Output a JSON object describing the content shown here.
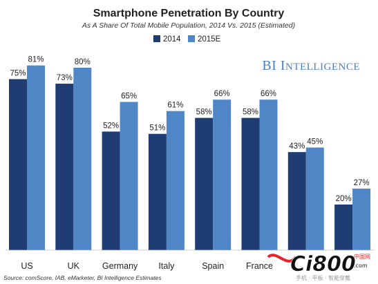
{
  "chart_data": {
    "type": "bar",
    "title": "Smartphone Penetration By Country",
    "subtitle": "As A Share Of Total Mobile Population, 2014 Vs. 2015 (Estimated)",
    "categories": [
      "US",
      "UK",
      "Germany",
      "Italy",
      "Spain",
      "France",
      "",
      ""
    ],
    "series": [
      {
        "name": "2014",
        "values": [
          75,
          73,
          52,
          51,
          58,
          58,
          43,
          20
        ],
        "color": "#1f3d73"
      },
      {
        "name": "2015E",
        "values": [
          81,
          80,
          65,
          61,
          66,
          66,
          45,
          27
        ],
        "color": "#4f86c6"
      }
    ],
    "value_suffix": "%",
    "ylim": [
      0,
      100
    ],
    "grid": false,
    "legend": "top-center",
    "xlabel": "",
    "ylabel": ""
  },
  "brand": "BI Intelligence",
  "source": "Source: comScore, IAB, eMarketer, BI Intelligence Estimates",
  "watermark": {
    "main": "Ci800",
    "suffix": ".com",
    "small": "手机 · 平板 · 智能穿戴",
    "cn": "中国网"
  },
  "colors": {
    "bar_2014": "#1f3d73",
    "bar_2015": "#4f86c6",
    "brand": "#4a7fc1",
    "watermark_red": "#e8232a"
  }
}
